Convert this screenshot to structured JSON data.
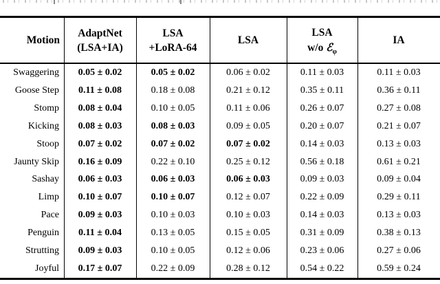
{
  "table": {
    "background": "#ffffff",
    "text_color": "#000000",
    "columns": [
      {
        "line1": "Motion",
        "line2": ""
      },
      {
        "line1": "AdaptNet",
        "line2": "(LSA+IA)"
      },
      {
        "line1": "LSA",
        "line2": "+LoRA-64"
      },
      {
        "line1": "LSA",
        "line2": ""
      },
      {
        "line1": "LSA",
        "line2_prefix": "w/o ",
        "line2_math": "ℰ",
        "line2_sub": "φ"
      },
      {
        "line1": "IA",
        "line2": ""
      }
    ],
    "rows": [
      {
        "motion": "Swaggering",
        "values": [
          "0.05 ± 0.02",
          "0.05 ± 0.02",
          "0.06 ± 0.02",
          "0.11 ± 0.03",
          "0.11 ± 0.03"
        ],
        "bold": [
          true,
          true,
          false,
          false,
          false
        ]
      },
      {
        "motion": "Goose Step",
        "values": [
          "0.11 ± 0.08",
          "0.18 ± 0.08",
          "0.21 ± 0.12",
          "0.35 ± 0.11",
          "0.36 ± 0.11"
        ],
        "bold": [
          true,
          false,
          false,
          false,
          false
        ]
      },
      {
        "motion": "Stomp",
        "values": [
          "0.08 ± 0.04",
          "0.10 ± 0.05",
          "0.11 ± 0.06",
          "0.26 ± 0.07",
          "0.27 ± 0.08"
        ],
        "bold": [
          true,
          false,
          false,
          false,
          false
        ]
      },
      {
        "motion": "Kicking",
        "values": [
          "0.08 ± 0.03",
          "0.08 ± 0.03",
          "0.09 ± 0.05",
          "0.20 ± 0.07",
          "0.21 ± 0.07"
        ],
        "bold": [
          true,
          true,
          false,
          false,
          false
        ]
      },
      {
        "motion": "Stoop",
        "values": [
          "0.07 ± 0.02",
          "0.07 ± 0.02",
          "0.07 ± 0.02",
          "0.14 ± 0.03",
          "0.13 ± 0.03"
        ],
        "bold": [
          true,
          true,
          true,
          false,
          false
        ]
      },
      {
        "motion": "Jaunty Skip",
        "values": [
          "0.16 ± 0.09",
          "0.22 ± 0.10",
          "0.25 ± 0.12",
          "0.56 ± 0.18",
          "0.61 ± 0.21"
        ],
        "bold": [
          true,
          false,
          false,
          false,
          false
        ]
      },
      {
        "motion": "Sashay",
        "values": [
          "0.06 ± 0.03",
          "0.06 ± 0.03",
          "0.06 ± 0.03",
          "0.09 ± 0.03",
          "0.09 ± 0.04"
        ],
        "bold": [
          true,
          true,
          true,
          false,
          false
        ]
      },
      {
        "motion": "Limp",
        "values": [
          "0.10 ± 0.07",
          "0.10 ± 0.07",
          "0.12 ± 0.07",
          "0.22 ± 0.09",
          "0.29 ± 0.11"
        ],
        "bold": [
          true,
          true,
          false,
          false,
          false
        ]
      },
      {
        "motion": "Pace",
        "values": [
          "0.09 ± 0.03",
          "0.10 ± 0.03",
          "0.10 ± 0.03",
          "0.14 ± 0.03",
          "0.13 ± 0.03"
        ],
        "bold": [
          true,
          false,
          false,
          false,
          false
        ]
      },
      {
        "motion": "Penguin",
        "values": [
          "0.11 ± 0.04",
          "0.13 ± 0.05",
          "0.15 ± 0.05",
          "0.31 ± 0.09",
          "0.38 ± 0.13"
        ],
        "bold": [
          true,
          false,
          false,
          false,
          false
        ]
      },
      {
        "motion": "Strutting",
        "values": [
          "0.09 ± 0.03",
          "0.10 ± 0.05",
          "0.12 ± 0.06",
          "0.23 ± 0.06",
          "0.27 ± 0.06"
        ],
        "bold": [
          true,
          false,
          false,
          false,
          false
        ]
      },
      {
        "motion": "Joyful",
        "values": [
          "0.17 ± 0.07",
          "0.22 ± 0.09",
          "0.28 ± 0.12",
          "0.54 ± 0.22",
          "0.59 ± 0.24"
        ],
        "bold": [
          true,
          false,
          false,
          false,
          false
        ]
      }
    ]
  }
}
